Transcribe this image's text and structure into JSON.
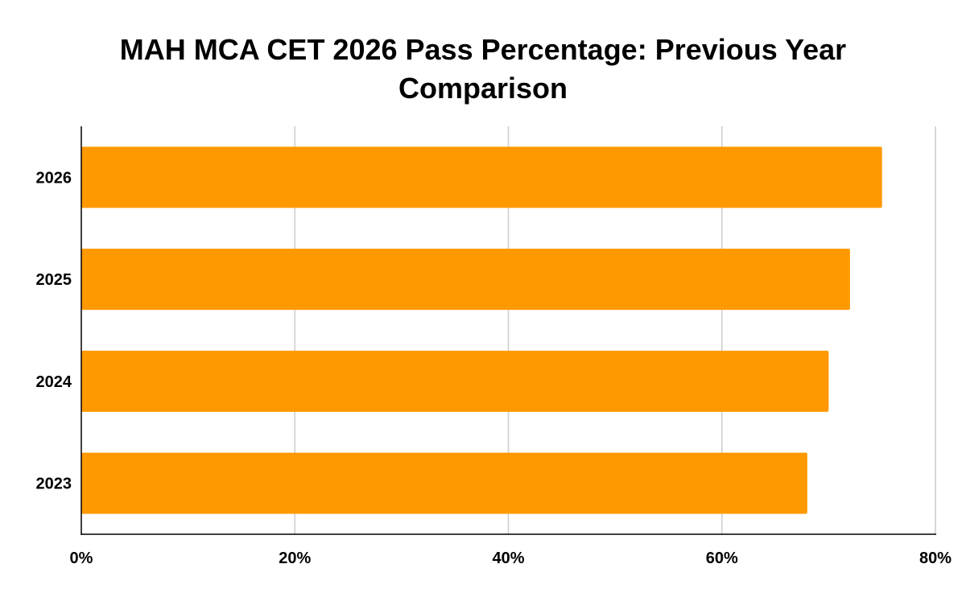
{
  "chart_data": {
    "type": "bar",
    "orientation": "horizontal",
    "title": "MAH MCA CET 2026 Pass Percentage: Previous Year Comparison",
    "xlabel": "",
    "ylabel": "",
    "categories": [
      "2026",
      "2025",
      "2024",
      "2023"
    ],
    "series": [
      {
        "values": [
          75,
          72,
          70,
          68
        ]
      }
    ],
    "xlim": [
      0,
      80
    ],
    "x_ticks": [
      0,
      20,
      40,
      60,
      80
    ],
    "x_tick_labels": [
      "0%",
      "20%",
      "40%",
      "60%",
      "80%"
    ],
    "grid": "vertical",
    "legend": "none",
    "bar_color": "#FF9900",
    "grid_color": "#CCCCCC",
    "axis_color": "#000000"
  }
}
